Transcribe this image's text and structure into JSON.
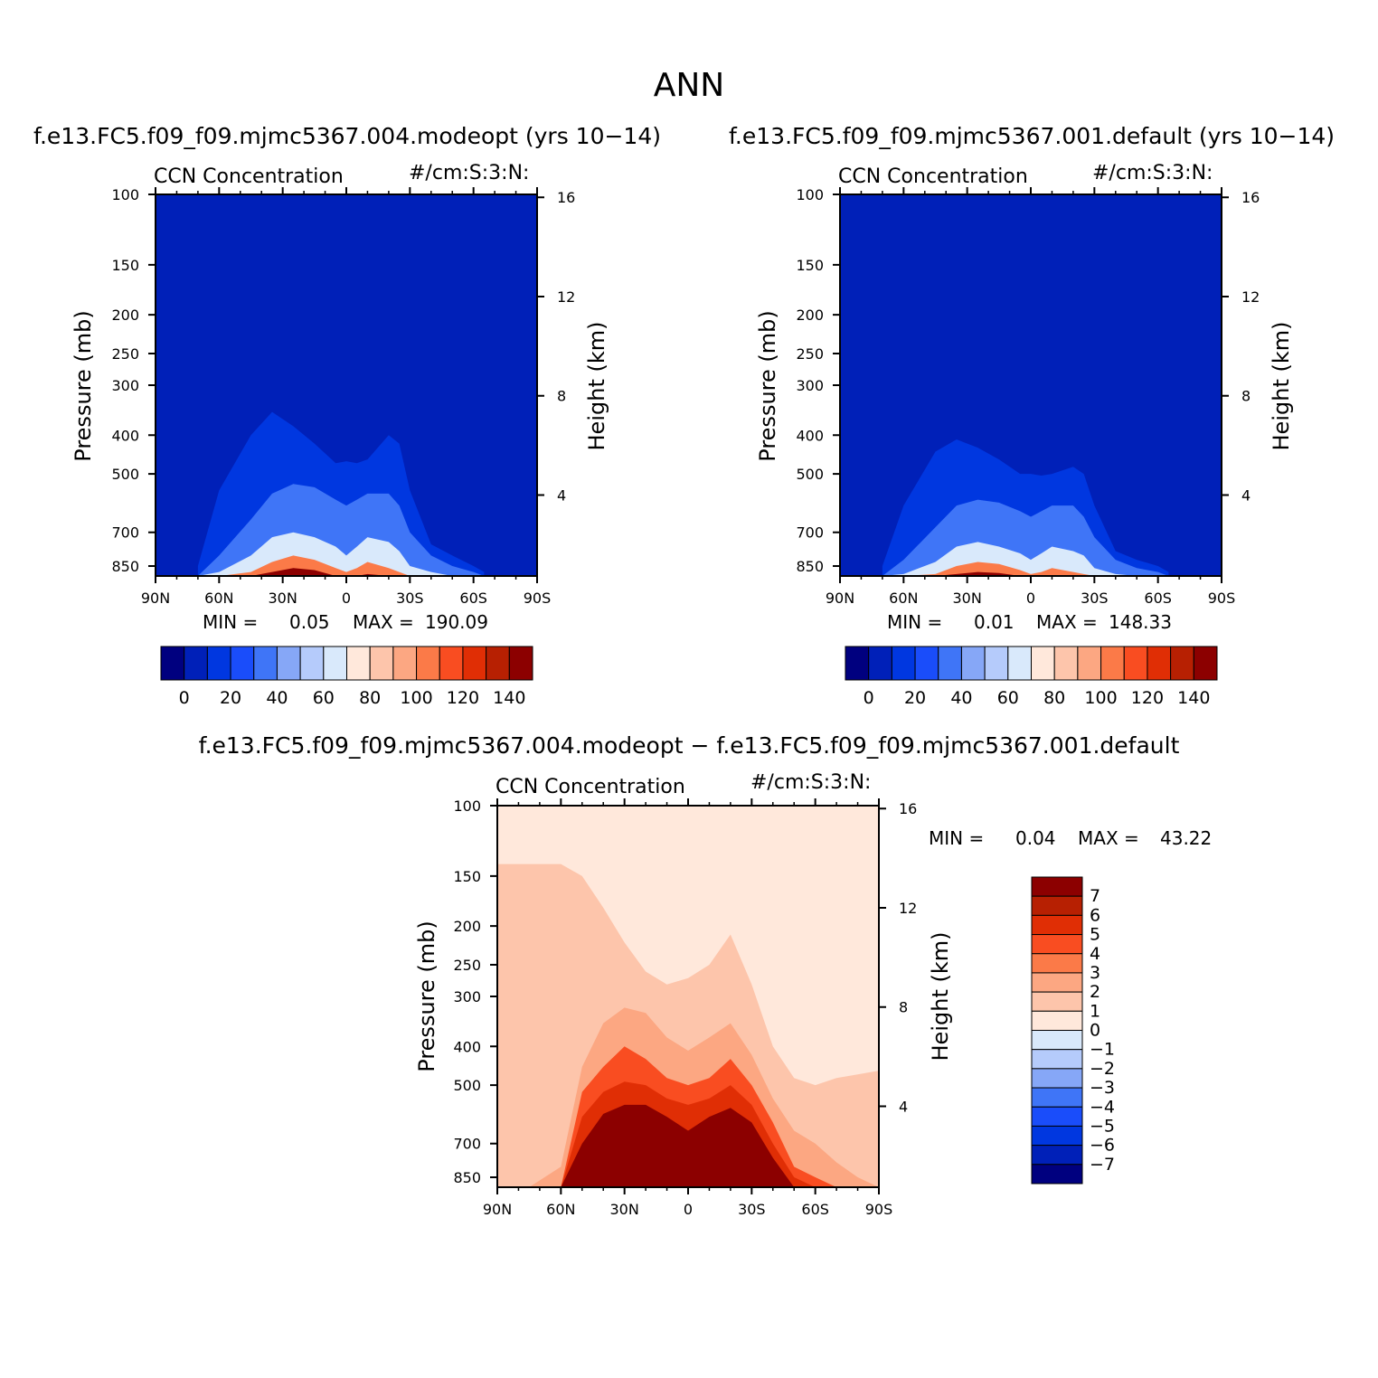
{
  "figure_title": "ANN",
  "colors": {
    "seq": [
      "#00007f",
      "#0020b8",
      "#0037e0",
      "#1a4dfa",
      "#3f75f7",
      "#86a7f7",
      "#b5cbfb",
      "#d9e9fb",
      "#ffe8db",
      "#fdc5ab",
      "#fca782",
      "#fb7a48",
      "#f94d21",
      "#e02e05",
      "#b72002",
      "#8c0000"
    ],
    "diff": [
      "#00007f",
      "#0020b8",
      "#0037e0",
      "#1a4dfa",
      "#3f75f7",
      "#86a7f7",
      "#b5cbfb",
      "#d9e9fb",
      "#ffe8db",
      "#fdc5ab",
      "#fca782",
      "#fb7a48",
      "#f94d21",
      "#e02e05",
      "#b72002",
      "#8c0000"
    ]
  },
  "colorbar_seq_labels": [
    "0",
    "20",
    "40",
    "60",
    "80",
    "100",
    "120",
    "140"
  ],
  "colorbar_diff_labels": [
    "7",
    "6",
    "5",
    "4",
    "3",
    "2",
    "1",
    "0",
    "−1",
    "−2",
    "−3",
    "−4",
    "−5",
    "−6",
    "−7"
  ],
  "chart_data": [
    {
      "type": "contour",
      "title": "f.e13.FC5.f09_f09.mjmc5367.004.modeopt (yrs 10−14)",
      "variable": "CCN Concentration",
      "units": "#/cm:S:3:N:",
      "xlabel": "",
      "ylabel": "Pressure (mb)",
      "ylabel_right": "Height (km)",
      "x_ticks": [
        "90N",
        "60N",
        "30N",
        "0",
        "30S",
        "60S",
        "90S"
      ],
      "y_ticks": [
        "100",
        "150",
        "200",
        "250",
        "300",
        "400",
        "500",
        "700",
        "850"
      ],
      "y_ticks_right": [
        "16",
        "12",
        "8",
        "4"
      ],
      "min_label": "MIN =",
      "min": "0.05",
      "max_label": "MAX =",
      "max": "190.09",
      "contour_tops_pressure_mb": {
        "lat": [
          70,
          60,
          45,
          35,
          25,
          15,
          5,
          0,
          -5,
          -10,
          -20,
          -25,
          -30,
          -40,
          -50,
          -60,
          -65
        ],
        "level_10": [
          850,
          550,
          400,
          350,
          380,
          420,
          470,
          465,
          470,
          460,
          400,
          420,
          550,
          750,
          800,
          850,
          880
        ],
        "level_30": [
          900,
          800,
          650,
          560,
          530,
          540,
          580,
          600,
          580,
          560,
          560,
          600,
          700,
          800,
          850,
          880,
          900
        ],
        "level_70": [
          900,
          880,
          800,
          720,
          700,
          720,
          760,
          800,
          760,
          720,
          740,
          780,
          850,
          880,
          900,
          900,
          900
        ],
        "level_100": [
          900,
          900,
          880,
          830,
          800,
          820,
          860,
          880,
          860,
          830,
          860,
          880,
          900,
          900,
          900,
          900,
          900
        ],
        "level_140": [
          900,
          900,
          900,
          880,
          860,
          870,
          900,
          900,
          900,
          890,
          900,
          900,
          900,
          900,
          900,
          900,
          900
        ]
      },
      "colorbar": "seq"
    },
    {
      "type": "contour",
      "title": "f.e13.FC5.f09_f09.mjmc5367.001.default (yrs 10−14)",
      "variable": "CCN Concentration",
      "units": "#/cm:S:3:N:",
      "xlabel": "",
      "ylabel": "Pressure (mb)",
      "ylabel_right": "Height (km)",
      "x_ticks": [
        "90N",
        "60N",
        "30N",
        "0",
        "30S",
        "60S",
        "90S"
      ],
      "y_ticks": [
        "100",
        "150",
        "200",
        "250",
        "300",
        "400",
        "500",
        "700",
        "850"
      ],
      "y_ticks_right": [
        "16",
        "12",
        "8",
        "4"
      ],
      "min_label": "MIN =",
      "min": "0.01",
      "max_label": "MAX =",
      "max": "148.33",
      "contour_tops_pressure_mb": {
        "lat": [
          70,
          60,
          45,
          35,
          25,
          15,
          5,
          0,
          -5,
          -10,
          -20,
          -25,
          -30,
          -40,
          -50,
          -60,
          -65
        ],
        "level_10": [
          850,
          600,
          440,
          410,
          430,
          460,
          500,
          500,
          505,
          500,
          480,
          500,
          600,
          780,
          820,
          850,
          880
        ],
        "level_30": [
          900,
          820,
          680,
          600,
          580,
          590,
          620,
          640,
          620,
          600,
          600,
          640,
          720,
          820,
          860,
          880,
          900
        ],
        "level_70": [
          900,
          890,
          830,
          760,
          740,
          760,
          790,
          820,
          790,
          760,
          780,
          800,
          860,
          890,
          900,
          900,
          900
        ],
        "level_100": [
          900,
          900,
          890,
          850,
          830,
          840,
          870,
          890,
          880,
          860,
          880,
          890,
          900,
          900,
          900,
          900,
          900
        ],
        "level_140": [
          900,
          900,
          900,
          890,
          880,
          885,
          900,
          900,
          900,
          900,
          900,
          900,
          900,
          900,
          900,
          900,
          900
        ]
      },
      "colorbar": "seq"
    },
    {
      "type": "contour",
      "title": "f.e13.FC5.f09_f09.mjmc5367.004.modeopt − f.e13.FC5.f09_f09.mjmc5367.001.default",
      "variable": "CCN Concentration",
      "units": "#/cm:S:3:N:",
      "xlabel": "",
      "ylabel": "Pressure (mb)",
      "ylabel_right": "Height (km)",
      "x_ticks": [
        "90N",
        "60N",
        "30N",
        "0",
        "30S",
        "60S",
        "90S"
      ],
      "y_ticks": [
        "100",
        "150",
        "200",
        "250",
        "300",
        "400",
        "500",
        "700",
        "850"
      ],
      "y_ticks_right": [
        "16",
        "12",
        "8",
        "4"
      ],
      "min_label": "MIN =",
      "min": "0.04",
      "max_label": "MAX =",
      "max": "43.22",
      "contour_tops_pressure_mb": {
        "lat": [
          90,
          75,
          60,
          50,
          40,
          30,
          20,
          10,
          0,
          -10,
          -20,
          -30,
          -40,
          -50,
          -60,
          -70,
          -80,
          -90
        ],
        "level_1": [
          140,
          140,
          140,
          150,
          180,
          220,
          260,
          280,
          270,
          250,
          210,
          280,
          400,
          480,
          500,
          480,
          470,
          460
        ],
        "level_2": [
          900,
          900,
          800,
          450,
          350,
          320,
          330,
          380,
          410,
          380,
          350,
          420,
          540,
          650,
          700,
          780,
          850,
          900
        ],
        "level_3": [
          900,
          900,
          900,
          520,
          450,
          400,
          430,
          480,
          500,
          480,
          430,
          500,
          620,
          800,
          850,
          900,
          900,
          900
        ],
        "level_5": [
          900,
          900,
          900,
          600,
          520,
          490,
          500,
          540,
          560,
          540,
          500,
          560,
          700,
          850,
          900,
          900,
          900,
          900
        ],
        "level_7": [
          900,
          900,
          900,
          700,
          590,
          560,
          560,
          600,
          650,
          600,
          570,
          620,
          760,
          900,
          900,
          900,
          900,
          900
        ]
      },
      "colorbar": "diff"
    }
  ]
}
